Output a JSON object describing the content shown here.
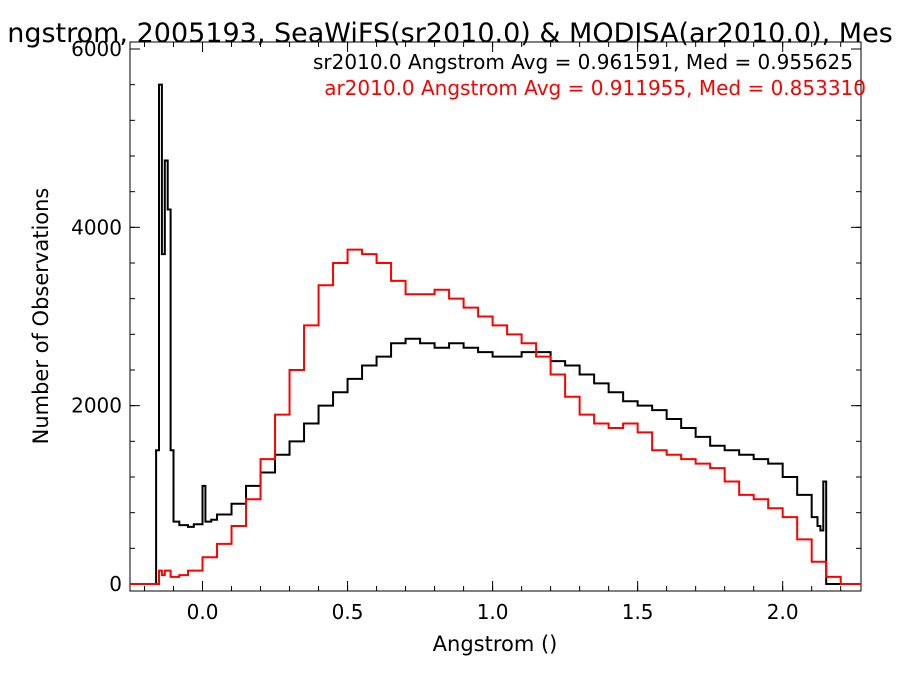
{
  "chart_data": {
    "type": "line",
    "title": "ngstrom, 2005193, SeaWiFS(sr2010.0) & MODISA(ar2010.0), Mes",
    "xlabel": "Angstrom ()",
    "ylabel": "Number of Observations",
    "xlim": [
      -0.25,
      2.27
    ],
    "ylim": [
      0,
      6000
    ],
    "x_ticks": [
      0.0,
      0.5,
      1.0,
      1.5,
      2.0
    ],
    "x_tick_labels": [
      "0.0",
      "0.5",
      "1.0",
      "1.5",
      "2.0"
    ],
    "y_ticks": [
      0,
      2000,
      4000,
      6000
    ],
    "y_tick_labels": [
      "0",
      "2000",
      "4000",
      "6000"
    ],
    "grid": false,
    "annotations": [
      {
        "text": "sr2010.0 Angstrom Avg = 0.961591, Med = 0.955625",
        "color": "#000000"
      },
      {
        "text": "ar2010.0 Angstrom Avg = 0.911955, Med = 0.853310",
        "color": "#ff0000"
      }
    ],
    "series": [
      {
        "color": "#000000",
        "style": "step",
        "x": [
          -0.25,
          -0.16,
          -0.15,
          -0.14,
          -0.13,
          -0.12,
          -0.11,
          -0.1,
          -0.08,
          -0.05,
          -0.03,
          0.0,
          0.01,
          0.03,
          0.05,
          0.1,
          0.15,
          0.2,
          0.25,
          0.3,
          0.35,
          0.4,
          0.45,
          0.5,
          0.55,
          0.6,
          0.65,
          0.7,
          0.75,
          0.8,
          0.85,
          0.9,
          0.95,
          1.0,
          1.05,
          1.1,
          1.15,
          1.2,
          1.25,
          1.3,
          1.35,
          1.4,
          1.45,
          1.5,
          1.55,
          1.6,
          1.65,
          1.7,
          1.75,
          1.8,
          1.85,
          1.9,
          1.95,
          2.0,
          2.05,
          2.1,
          2.12,
          2.13,
          2.14,
          2.15,
          2.27
        ],
        "y": [
          0,
          1500,
          5600,
          3700,
          4750,
          4200,
          1500,
          700,
          660,
          640,
          670,
          1100,
          700,
          720,
          780,
          900,
          1100,
          1250,
          1450,
          1600,
          1800,
          2000,
          2150,
          2300,
          2450,
          2550,
          2700,
          2750,
          2700,
          2650,
          2700,
          2650,
          2600,
          2550,
          2550,
          2600,
          2600,
          2500,
          2450,
          2350,
          2250,
          2150,
          2050,
          2000,
          1950,
          1850,
          1750,
          1650,
          1550,
          1500,
          1450,
          1400,
          1350,
          1200,
          1000,
          750,
          650,
          600,
          1150,
          0,
          0
        ]
      },
      {
        "color": "#ff0000",
        "style": "step",
        "x": [
          -0.25,
          -0.16,
          -0.15,
          -0.14,
          -0.13,
          -0.11,
          -0.08,
          -0.05,
          0.0,
          0.05,
          0.1,
          0.15,
          0.2,
          0.25,
          0.3,
          0.35,
          0.4,
          0.45,
          0.5,
          0.55,
          0.6,
          0.65,
          0.7,
          0.75,
          0.8,
          0.85,
          0.9,
          0.95,
          1.0,
          1.05,
          1.1,
          1.15,
          1.2,
          1.25,
          1.3,
          1.35,
          1.4,
          1.45,
          1.5,
          1.55,
          1.6,
          1.65,
          1.7,
          1.75,
          1.8,
          1.85,
          1.9,
          1.95,
          2.0,
          2.05,
          2.1,
          2.15,
          2.2,
          2.27
        ],
        "y": [
          0,
          0,
          150,
          100,
          150,
          80,
          100,
          150,
          300,
          450,
          650,
          950,
          1400,
          1900,
          2400,
          2900,
          3350,
          3600,
          3750,
          3700,
          3600,
          3400,
          3250,
          3250,
          3300,
          3200,
          3100,
          3000,
          2900,
          2800,
          2700,
          2550,
          2350,
          2100,
          1900,
          1800,
          1750,
          1800,
          1700,
          1500,
          1450,
          1400,
          1350,
          1300,
          1150,
          1000,
          950,
          850,
          750,
          500,
          250,
          80,
          0,
          0
        ]
      }
    ]
  }
}
